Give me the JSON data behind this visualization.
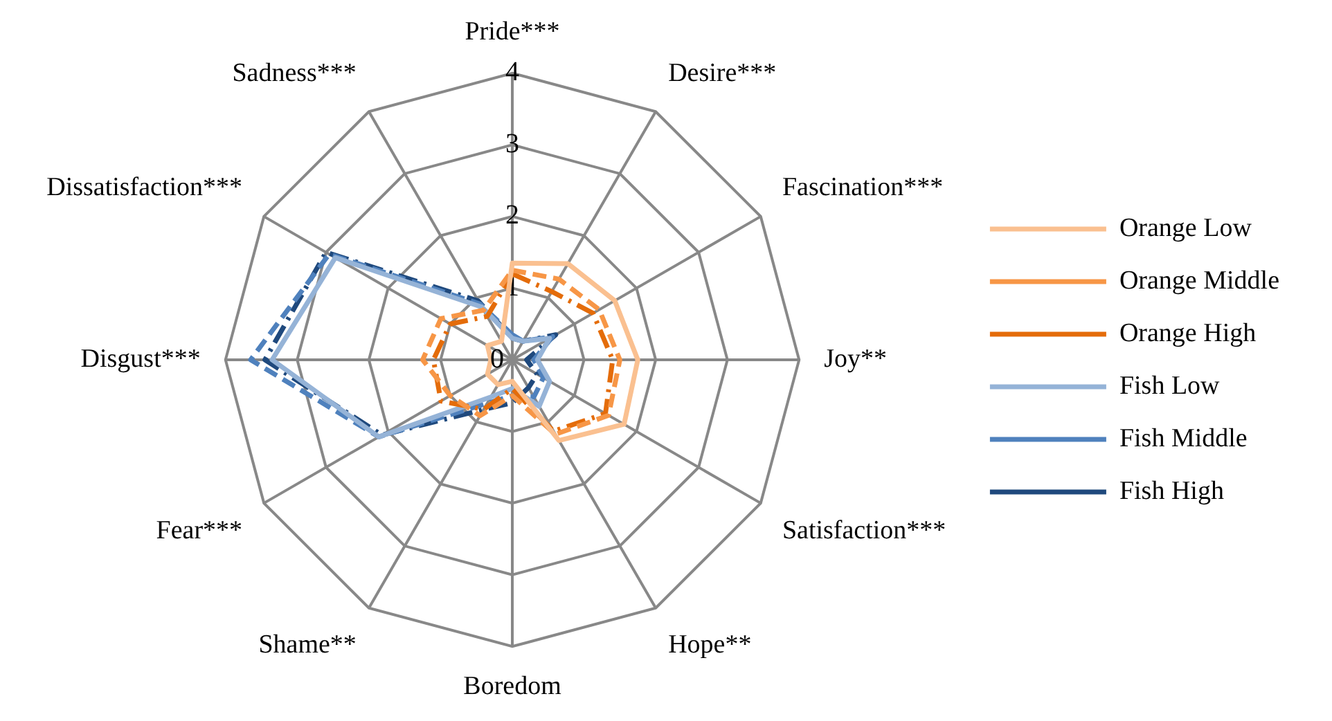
{
  "chart_data": {
    "type": "radar",
    "categories": [
      "Pride***",
      "Desire***",
      "Fascination***",
      "Joy**",
      "Satisfaction***",
      "Hope**",
      "Boredom",
      "Shame**",
      "Fear***",
      "Disgust***",
      "Dissatisfaction***",
      "Sadness***"
    ],
    "ylim": [
      0,
      4
    ],
    "yticks": [
      0,
      1,
      2,
      3,
      4
    ],
    "grid": true,
    "legend": "right",
    "marker": "none",
    "series": [
      {
        "name": "Orange Low",
        "color": "#fac090",
        "line_style": "solid",
        "values": [
          1.35,
          1.55,
          1.65,
          1.75,
          1.8,
          1.3,
          0.3,
          0.4,
          0.4,
          0.3,
          0.4,
          0.3
        ]
      },
      {
        "name": "Orange Middle",
        "color": "#f79646",
        "line_style": "dashed",
        "values": [
          1.25,
          1.3,
          1.4,
          1.5,
          1.55,
          1.2,
          0.5,
          0.9,
          1.0,
          1.25,
          1.15,
          0.8
        ]
      },
      {
        "name": "Orange High",
        "color": "#e46c0a",
        "line_style": "dashdot",
        "values": [
          1.2,
          1.1,
          1.3,
          1.4,
          1.5,
          1.15,
          0.4,
          0.8,
          1.15,
          1.1,
          1.0,
          0.7
        ]
      },
      {
        "name": "Fish Low",
        "color": "#95b3d7",
        "line_style": "solid",
        "values": [
          0.3,
          0.3,
          0.6,
          0.35,
          0.6,
          0.75,
          0.4,
          0.6,
          2.15,
          3.35,
          2.85,
          0.85
        ]
      },
      {
        "name": "Fish Middle",
        "color": "#4f81bd",
        "line_style": "dashed",
        "values": [
          0.35,
          0.3,
          0.65,
          0.3,
          0.5,
          0.6,
          0.5,
          0.7,
          2.15,
          3.65,
          2.95,
          0.9
        ]
      },
      {
        "name": "Fish High",
        "color": "#1f497d",
        "line_style": "dashdot",
        "values": [
          0.3,
          0.3,
          0.7,
          0.2,
          0.4,
          0.45,
          0.6,
          0.8,
          2.1,
          3.45,
          3.0,
          0.95
        ]
      }
    ]
  }
}
